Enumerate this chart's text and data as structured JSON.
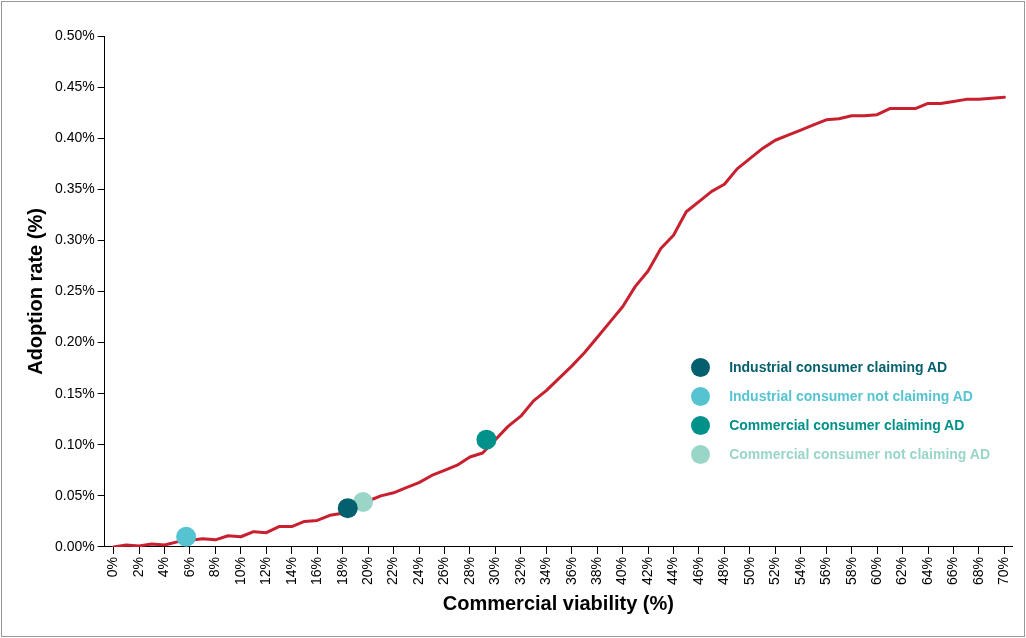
{
  "chart_data": {
    "type": "line",
    "xlabel": "Commercial viability (%)",
    "ylabel": "Adoption rate (%)",
    "xlim": [
      -0.7,
      70.6
    ],
    "ylim": [
      0,
      0.5
    ],
    "xticks": [
      {
        "value": 0,
        "label": "0%"
      },
      {
        "value": 2,
        "label": "2%"
      },
      {
        "value": 4,
        "label": "4%"
      },
      {
        "value": 6,
        "label": "6%"
      },
      {
        "value": 8,
        "label": "8%"
      },
      {
        "value": 10,
        "label": "10%"
      },
      {
        "value": 12,
        "label": "12%"
      },
      {
        "value": 14,
        "label": "14%"
      },
      {
        "value": 16,
        "label": "16%"
      },
      {
        "value": 18,
        "label": "18%"
      },
      {
        "value": 20,
        "label": "20%"
      },
      {
        "value": 22,
        "label": "22%"
      },
      {
        "value": 24,
        "label": "24%"
      },
      {
        "value": 26,
        "label": "26%"
      },
      {
        "value": 28,
        "label": "28%"
      },
      {
        "value": 30,
        "label": "30%"
      },
      {
        "value": 32,
        "label": "32%"
      },
      {
        "value": 34,
        "label": "34%"
      },
      {
        "value": 36,
        "label": "36%"
      },
      {
        "value": 38,
        "label": "38%"
      },
      {
        "value": 40,
        "label": "40%"
      },
      {
        "value": 42,
        "label": "42%"
      },
      {
        "value": 44,
        "label": "44%"
      },
      {
        "value": 46,
        "label": "46%"
      },
      {
        "value": 48,
        "label": "48%"
      },
      {
        "value": 50,
        "label": "50%"
      },
      {
        "value": 52,
        "label": "52%"
      },
      {
        "value": 54,
        "label": "54%"
      },
      {
        "value": 56,
        "label": "56%"
      },
      {
        "value": 58,
        "label": "58%"
      },
      {
        "value": 60,
        "label": "60%"
      },
      {
        "value": 62,
        "label": "62%"
      },
      {
        "value": 64,
        "label": "64%"
      },
      {
        "value": 66,
        "label": "66%"
      },
      {
        "value": 68,
        "label": "68%"
      },
      {
        "value": 70,
        "label": "70%"
      }
    ],
    "yticks": [
      {
        "value": 0,
        "label": "0.00%"
      },
      {
        "value": 0.05,
        "label": "0.05%"
      },
      {
        "value": 0.1,
        "label": "0.10%"
      },
      {
        "value": 0.15,
        "label": "0.15%"
      },
      {
        "value": 0.2,
        "label": "0.20%"
      },
      {
        "value": 0.25,
        "label": "0.25%"
      },
      {
        "value": 0.3,
        "label": "0.30%"
      },
      {
        "value": 0.35,
        "label": "0.35%"
      },
      {
        "value": 0.4,
        "label": "0.40%"
      },
      {
        "value": 0.45,
        "label": "0.45%"
      },
      {
        "value": 0.5,
        "label": "0.50%"
      }
    ],
    "legend": "right",
    "marker": "none",
    "line_style": "solid",
    "series": [
      {
        "type": "line",
        "color": "#c8202f",
        "x": [
          0,
          1,
          2,
          3,
          4,
          5,
          6,
          7,
          8,
          9,
          10,
          11,
          12,
          13,
          14,
          15,
          16,
          17,
          18,
          19,
          20,
          21,
          22,
          23,
          24,
          25,
          26,
          27,
          28,
          29,
          30,
          31,
          32,
          33,
          34,
          35,
          36,
          37,
          38,
          39,
          40,
          41,
          42,
          43,
          44,
          45,
          46,
          47,
          48,
          49,
          50,
          51,
          52,
          53,
          54,
          55,
          56,
          57,
          58,
          59,
          60,
          61,
          62,
          63,
          64,
          65,
          66,
          67,
          68,
          69,
          70
        ],
        "values": [
          0,
          0.002,
          0.001,
          0.003,
          0.002,
          0.005,
          null,
          0.008,
          0.007,
          0.011,
          0.01,
          0.015,
          0.014,
          0.02,
          0.02,
          0.025,
          0.026,
          0.031,
          0.033,
          null,
          0.045,
          0.05,
          0.053,
          0.058,
          0.063,
          0.07,
          0.075,
          0.08,
          0.088,
          0.092,
          0.105,
          0.118,
          0.128,
          0.143,
          0.153,
          0.165,
          0.177,
          0.19,
          0.205,
          0.22,
          0.235,
          0.255,
          0.27,
          0.292,
          0.305,
          0.328,
          0.338,
          0.348,
          0.355,
          0.37,
          0.38,
          0.39,
          0.398,
          0.403,
          0.408,
          0.413,
          0.418,
          0.419,
          0.422,
          0.422,
          0.423,
          0.429,
          0.429,
          0.429,
          0.434,
          0.434,
          0.436,
          0.438,
          0.438,
          0.439,
          0.44
        ]
      },
      {
        "type": "scatter",
        "marker": "circle",
        "name": "Industrial consumer claiming AD",
        "color": "#045f6e",
        "x": [
          18.4
        ],
        "values": [
          0.038
        ]
      },
      {
        "type": "scatter",
        "marker": "circle",
        "name": "Industrial consumer not claiming AD",
        "color": "#56c4d0",
        "x": [
          5.7
        ],
        "values": [
          0.01
        ]
      },
      {
        "type": "scatter",
        "marker": "circle",
        "name": "Commercial consumer claiming AD",
        "color": "#00918a",
        "x": [
          29.3
        ],
        "values": [
          0.105
        ]
      },
      {
        "type": "scatter",
        "marker": "circle",
        "name": "Commercial consumer not claiming AD",
        "color": "#99d6c8",
        "x": [
          19.6
        ],
        "values": [
          0.044
        ]
      }
    ]
  }
}
